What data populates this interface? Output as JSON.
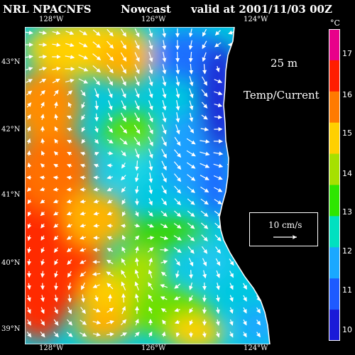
{
  "header": {
    "source": "NRL NPACNFS",
    "product": "Nowcast",
    "valid": "valid at 2001/11/03 00Z"
  },
  "axes": {
    "top_lon_labels": [
      "128°W",
      "126°W",
      "124°W"
    ],
    "bottom_lon_labels": [
      "128°W",
      "126°W",
      "124°W"
    ],
    "lat_labels": [
      "43°N",
      "42°N",
      "41°N",
      "40°N",
      "39°N"
    ]
  },
  "overlay": {
    "depth": "25 m",
    "field": "Temp/Current"
  },
  "vector_legend": {
    "label": "10 cm/s"
  },
  "colorbar": {
    "unit": "°C",
    "ticks": [
      "17",
      "16",
      "15",
      "14",
      "13",
      "12",
      "11",
      "10"
    ],
    "colors": [
      "#e8008a",
      "#ff1e00",
      "#ff7a00",
      "#ffd000",
      "#a6e000",
      "#2ee600",
      "#00e0c0",
      "#1aa8ff",
      "#1e5aff",
      "#1a1ad8"
    ]
  },
  "map_colors": {
    "land": "#000000",
    "coast": "#ffffff"
  }
}
